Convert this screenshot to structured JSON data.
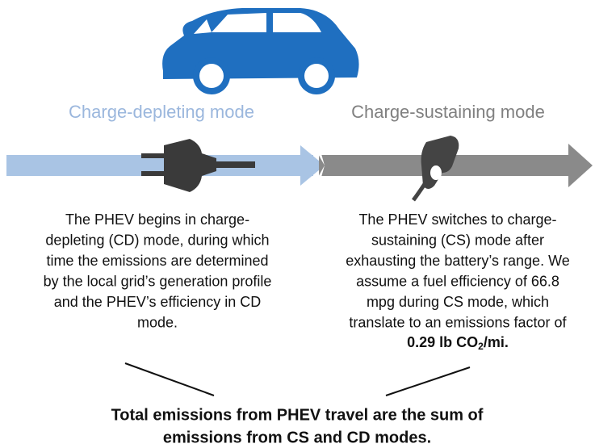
{
  "headings": {
    "left": "Charge-depleting mode",
    "right": "Charge-sustaining mode"
  },
  "left_text": [
    "The PHEV begins in charge-",
    "depleting (CD) mode, during which",
    "time the emissions are determined",
    "by the local grid’s generation profile",
    "and the PHEV’s efficiency in CD",
    "mode."
  ],
  "right_text": [
    "The PHEV switches to charge-",
    "sustaining (CS) mode after",
    "exhausting the battery’s range. We",
    "assume a fuel efficiency of 66.8",
    "mpg during CS mode, which",
    "translate to an emissions factor of"
  ],
  "emission_factor": {
    "text": "0.29 lb CO",
    "subscript": "2",
    "suffix": "/mi."
  },
  "conclusion": [
    "Total emissions from PHEV travel are the sum of",
    "emissions from CS and CD modes."
  ]
}
